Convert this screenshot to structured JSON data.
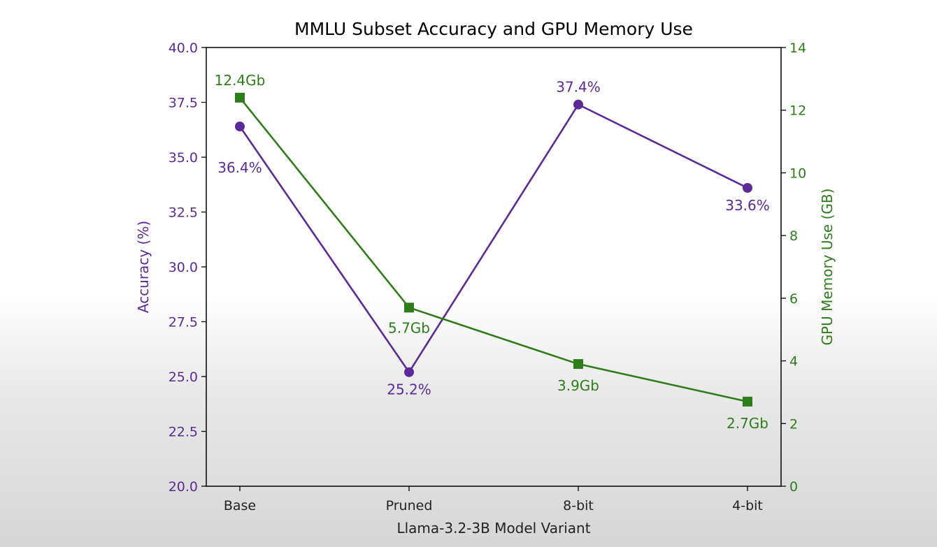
{
  "chart_data": {
    "type": "line",
    "title": "MMLU Subset Accuracy and GPU Memory Use",
    "xlabel": "Llama-3.2-3B Model Variant",
    "categories": [
      "Base",
      "Pruned",
      "8-bit",
      "4-bit"
    ],
    "y_left": {
      "label": "Accuracy (%)",
      "lim": [
        20.0,
        40.0
      ],
      "ticks": [
        "20.0",
        "22.5",
        "25.0",
        "27.5",
        "30.0",
        "32.5",
        "35.0",
        "37.5",
        "40.0"
      ],
      "color": "#5b2a96"
    },
    "y_right": {
      "label": "GPU Memory Use (GB)",
      "lim": [
        0,
        14
      ],
      "ticks": [
        "0",
        "2",
        "4",
        "6",
        "8",
        "10",
        "12",
        "14"
      ],
      "color": "#2e7d1a"
    },
    "series": [
      {
        "axis": "left",
        "marker": "circle",
        "color": "#5b2a96",
        "values": [
          36.4,
          25.2,
          37.4,
          33.6
        ],
        "labels": [
          "36.4%",
          "25.2%",
          "37.4%",
          "33.6%"
        ]
      },
      {
        "axis": "right",
        "marker": "square",
        "color": "#2e7d1a",
        "values": [
          12.4,
          5.7,
          3.9,
          2.7
        ],
        "labels": [
          "12.4Gb",
          "5.7Gb",
          "3.9Gb",
          "2.7Gb"
        ]
      }
    ],
    "grid": false
  }
}
